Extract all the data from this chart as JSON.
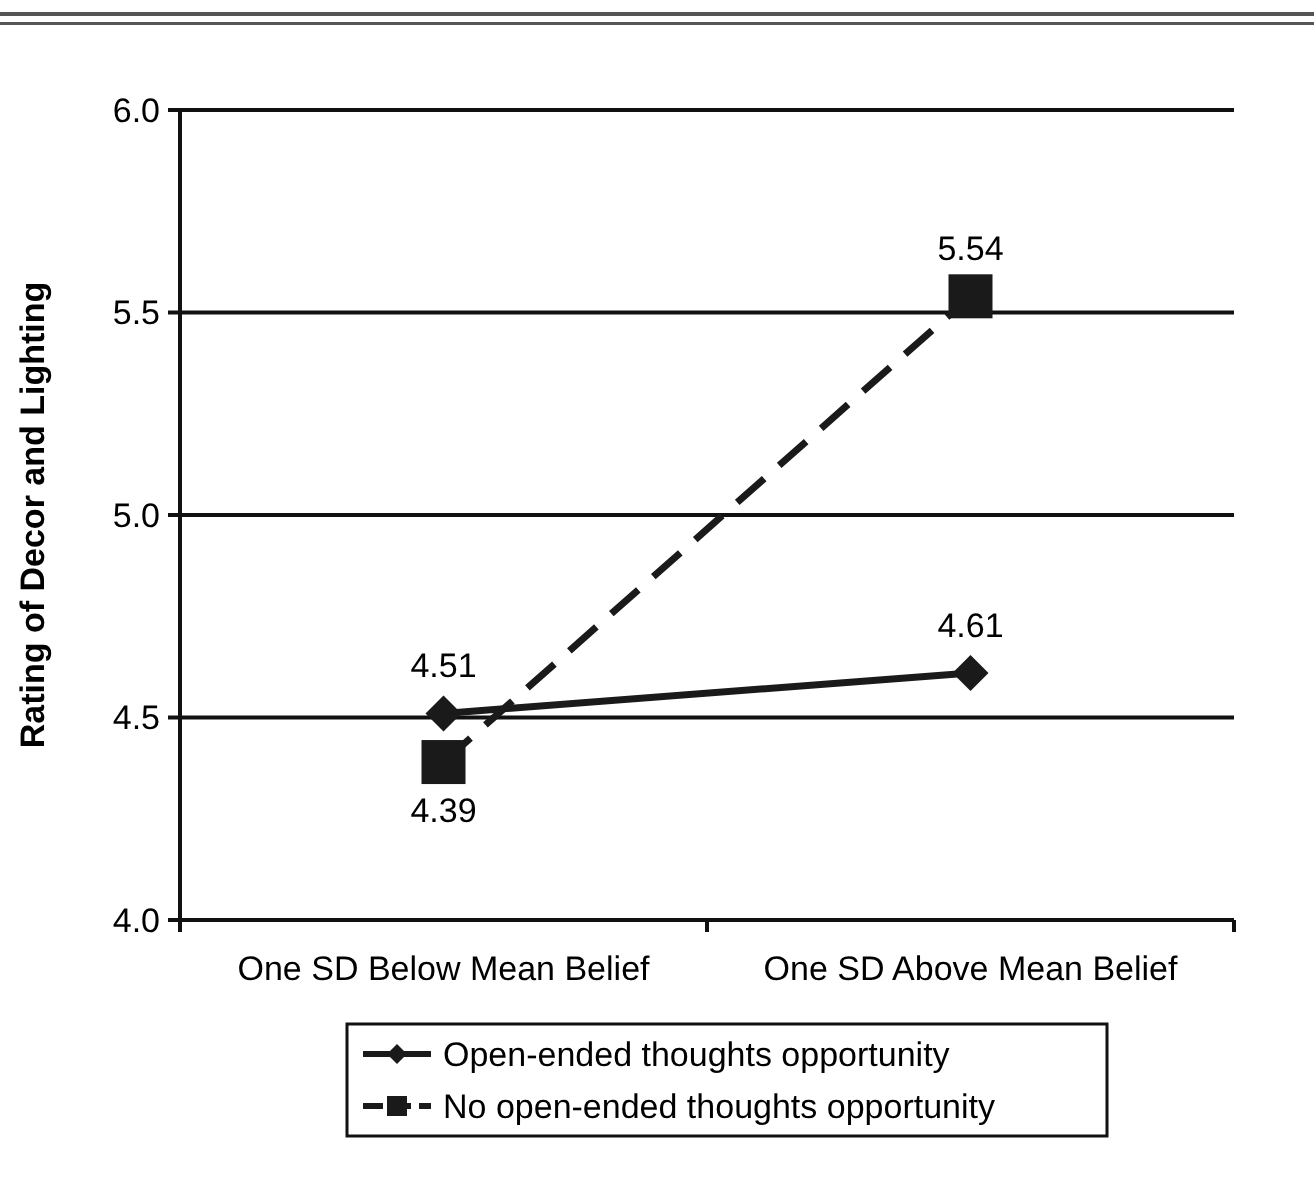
{
  "chart_data": {
    "type": "line",
    "ylabel": "Rating of Decor and Lighting",
    "categories": [
      "One SD Below Mean Belief",
      "One SD Above Mean Belief"
    ],
    "series": [
      {
        "name": "Open-ended thoughts opportunity",
        "color": "#1a1a1a",
        "values": [
          4.51,
          4.61
        ],
        "marker": "diamond",
        "line_style": "solid"
      },
      {
        "name": "No open-ended thoughts opportunity",
        "color": "#1a1a1a",
        "values": [
          4.39,
          5.54
        ],
        "marker": "square",
        "line_style": "dashed"
      }
    ],
    "ylim": [
      4.0,
      6.0
    ],
    "yticks": [
      {
        "value": 4.0,
        "label": "4.0"
      },
      {
        "value": 4.5,
        "label": "4.5"
      },
      {
        "value": 5.0,
        "label": "5.0"
      },
      {
        "value": 5.5,
        "label": "5.5"
      },
      {
        "value": 6.0,
        "label": "6.0"
      }
    ],
    "grid": "y",
    "legend": "bottom",
    "data_labels": true
  }
}
